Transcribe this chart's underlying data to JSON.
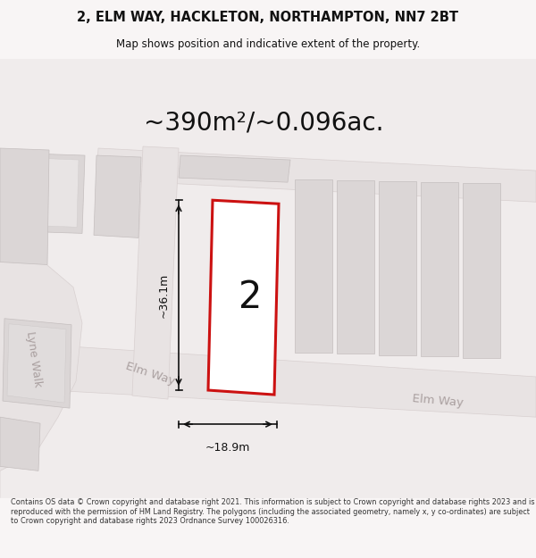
{
  "title": "2, ELM WAY, HACKLETON, NORTHAMPTON, NN7 2BT",
  "subtitle": "Map shows position and indicative extent of the property.",
  "area_text": "~390m²/~0.096ac.",
  "plot_number": "2",
  "dim_width": "~18.9m",
  "dim_height": "~36.1m",
  "street_elm_way_left": "Elm Way",
  "street_elm_way_right": "Elm Way",
  "street_lyne_walk": "Lyne Walk",
  "footer": "Contains OS data © Crown copyright and database right 2021. This information is subject to Crown copyright and database rights 2023 and is reproduced with the permission of HM Land Registry. The polygons (including the associated geometry, namely x, y co-ordinates) are subject to Crown copyright and database rights 2023 Ordnance Survey 100026316.",
  "map_bg": "#f2eeee",
  "road_fill": "#e8e2e2",
  "building_fill_light": "#dbd6d6",
  "building_fill_dark": "#c8c4c4",
  "plot_outline_color": "#cc1111",
  "plot_fill_color": "#ffffff",
  "dim_color": "#111111",
  "text_color": "#1a1a1a",
  "street_color": "#aaa0a0",
  "footer_color": "#333333",
  "title_color": "#111111",
  "header_bg": "#f8f5f5",
  "footer_bg": "#f8f5f5"
}
